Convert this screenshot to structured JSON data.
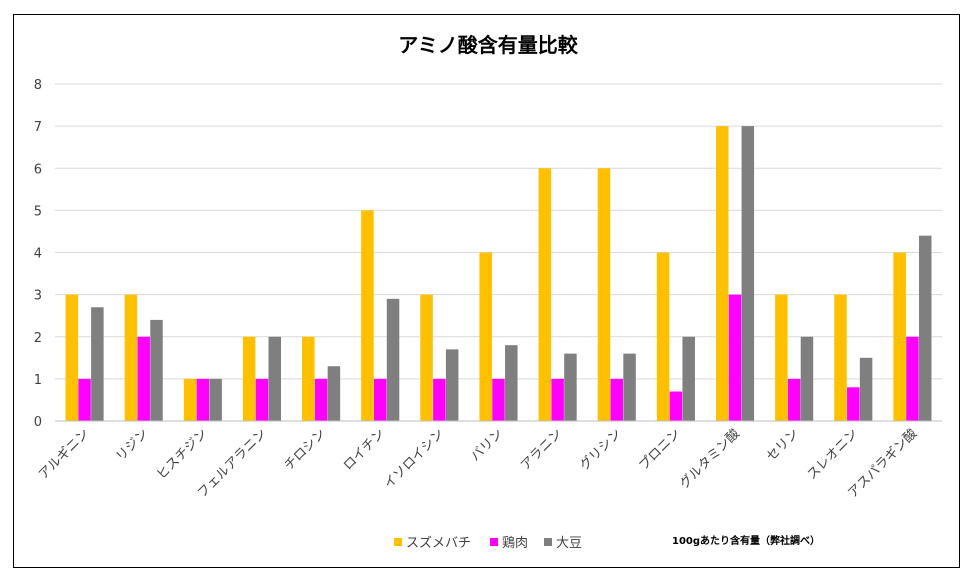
{
  "chart_data": {
    "type": "bar",
    "title": "アミノ酸含有量比較",
    "categories": [
      "アルギニン",
      "リジン",
      "ヒスチジン",
      "フェルアラニン",
      "チロシン",
      "ロイチン",
      "イソロイシン",
      "バリン",
      "アラニン",
      "グリシン",
      "プロニン",
      "グルタミン酸",
      "セリン",
      "スレオニン",
      "アスパラギン酸"
    ],
    "series": [
      {
        "name": "スズメバチ",
        "color": "#FFC000",
        "values": [
          3,
          3,
          1,
          2,
          2,
          5,
          3,
          4,
          6,
          6,
          4,
          7,
          3,
          3,
          4
        ]
      },
      {
        "name": "鶏肉",
        "color": "#FF00FF",
        "values": [
          1,
          2,
          1,
          1,
          1,
          1,
          1,
          1,
          1,
          1,
          0.7,
          3,
          1,
          0.8,
          2
        ]
      },
      {
        "name": "大豆",
        "color": "#7F7F7F",
        "values": [
          2.7,
          2.4,
          1,
          2,
          1.3,
          2.9,
          1.7,
          1.8,
          1.6,
          1.6,
          2,
          7,
          2,
          1.5,
          4.4
        ]
      }
    ],
    "ylim": [
      0,
      8
    ],
    "yticks": [
      "0",
      "1",
      "2",
      "3",
      "4",
      "5",
      "6",
      "7",
      "8"
    ],
    "grid": true,
    "legend_position": "bottom",
    "xlabel": "",
    "ylabel": "",
    "note": "100gあたり含有量（弊社調べ）"
  }
}
